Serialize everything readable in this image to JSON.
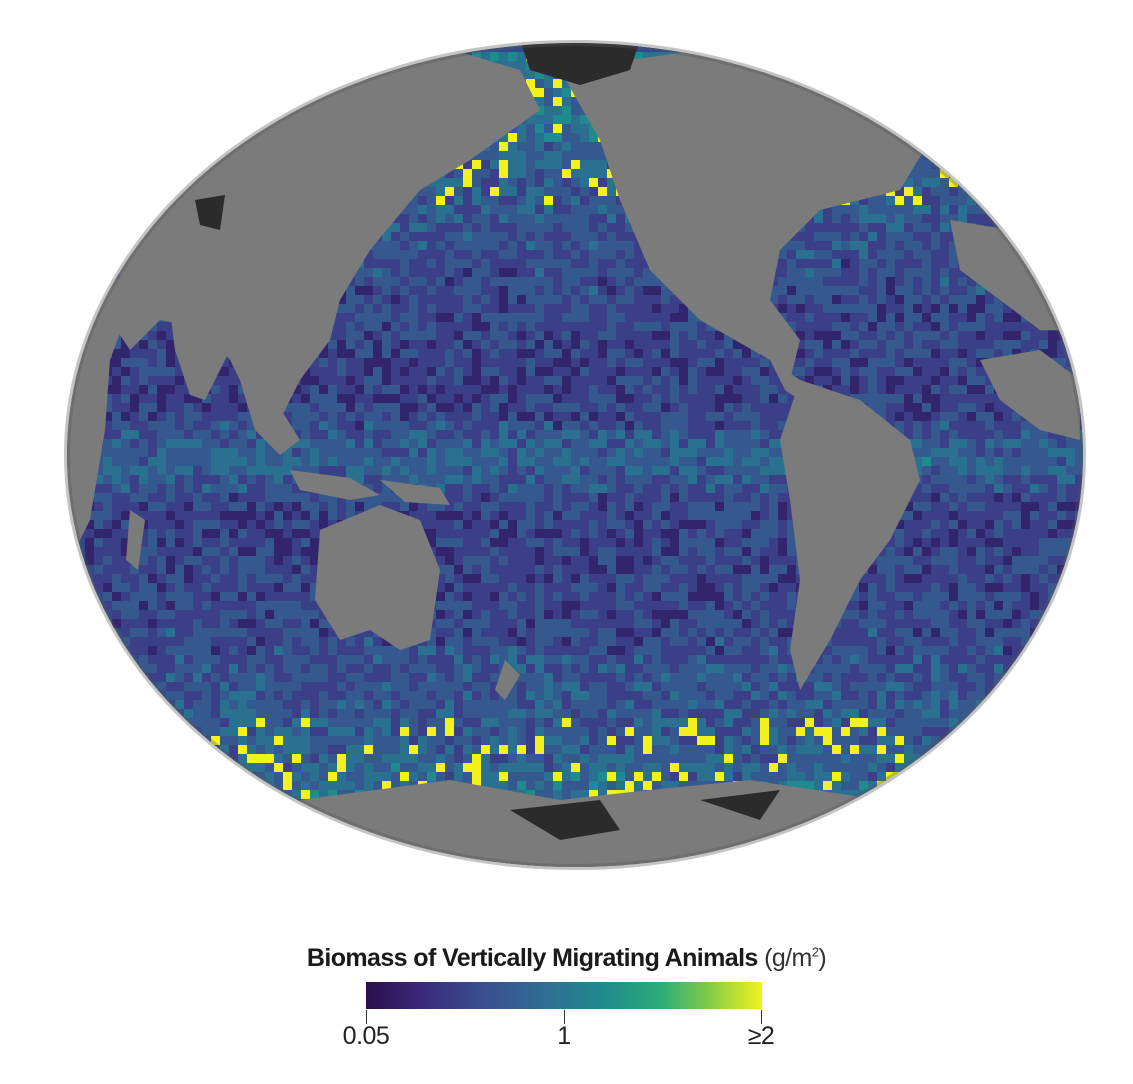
{
  "legend": {
    "title": "Biomass of Vertically Migrating Animals",
    "unit": "(g/m",
    "unit_sup": "2",
    "unit_close": ")",
    "ticks": [
      "0.05",
      "1",
      "≥2"
    ]
  },
  "colors": {
    "land": "#7b7b7b",
    "ice": "#2b2b2b",
    "ocean_low": "#2a0e4f",
    "ocean_mid": "#1f8b8e",
    "ocean_high": "#f4f21d"
  }
}
